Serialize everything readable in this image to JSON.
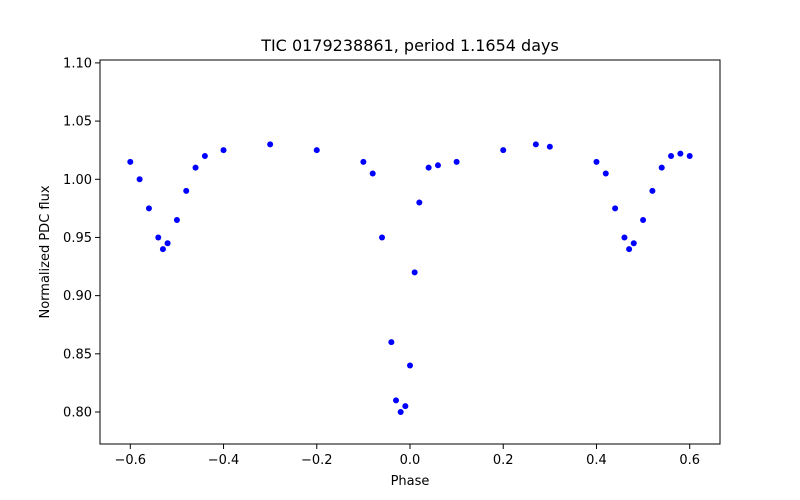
{
  "chart_data": {
    "type": "scatter",
    "title": "TIC 0179238861, period 1.1654 days",
    "xlabel": "Phase",
    "ylabel": "Normalized PDC flux",
    "xlim": [
      -0.665,
      0.665
    ],
    "ylim": [
      0.7725,
      1.1025
    ],
    "xticks": [
      -0.6,
      -0.4,
      -0.2,
      0.0,
      0.2,
      0.4,
      0.6
    ],
    "xtick_labels": [
      "−0.6",
      "−0.4",
      "−0.2",
      "0.0",
      "0.2",
      "0.4",
      "0.6"
    ],
    "yticks": [
      0.8,
      0.85,
      0.9,
      0.95,
      1.0,
      1.05,
      1.1
    ],
    "ytick_labels": [
      "0.80",
      "0.85",
      "0.90",
      "0.95",
      "1.00",
      "1.05",
      "1.10"
    ],
    "grid": false,
    "marker_color": "#0000ff",
    "period_days": 1.1654,
    "primary_eclipse": {
      "phase": -0.02,
      "min_flux": 0.8
    },
    "secondary_eclipses": [
      {
        "phase": -0.53,
        "min_flux": 0.94
      },
      {
        "phase": 0.47,
        "min_flux": 0.94
      }
    ],
    "series": [
      {
        "x": [
          -0.6,
          -0.58,
          -0.56,
          -0.54,
          -0.53,
          -0.52,
          -0.5,
          -0.48,
          -0.46,
          -0.44,
          -0.4,
          -0.3,
          -0.2,
          -0.1,
          -0.08,
          -0.06,
          -0.04,
          -0.03,
          -0.02,
          -0.01,
          0.0,
          0.01,
          0.02,
          0.04,
          0.06,
          0.1,
          0.2,
          0.27,
          0.3,
          0.4,
          0.42,
          0.44,
          0.46,
          0.47,
          0.48,
          0.5,
          0.52,
          0.54,
          0.56,
          0.58,
          0.6
        ],
        "y": [
          1.015,
          1.0,
          0.975,
          0.95,
          0.94,
          0.945,
          0.965,
          0.99,
          1.01,
          1.02,
          1.025,
          1.03,
          1.025,
          1.015,
          1.005,
          0.95,
          0.86,
          0.81,
          0.8,
          0.805,
          0.84,
          0.92,
          0.98,
          1.01,
          1.012,
          1.015,
          1.025,
          1.03,
          1.028,
          1.015,
          1.005,
          0.975,
          0.95,
          0.94,
          0.945,
          0.965,
          0.99,
          1.01,
          1.02,
          1.022,
          1.02
        ]
      }
    ]
  }
}
